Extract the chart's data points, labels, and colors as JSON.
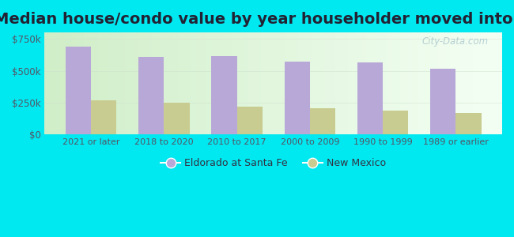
{
  "title": "Median house/condo value by year householder moved into unit",
  "categories": [
    "2021 or later",
    "2018 to 2020",
    "2010 to 2017",
    "2000 to 2009",
    "1990 to 1999",
    "1989 or earlier"
  ],
  "eldorado_values": [
    690000,
    610000,
    615000,
    570000,
    565000,
    515000
  ],
  "newmexico_values": [
    265000,
    248000,
    218000,
    205000,
    185000,
    170000
  ],
  "eldorado_color": "#b8a8d8",
  "newmexico_color": "#c8cc90",
  "background_outer": "#00e8f0",
  "background_inner_left": "#d8f0d0",
  "background_inner_right": "#f0fff0",
  "ylim": [
    0,
    800000
  ],
  "yticks": [
    0,
    250000,
    500000,
    750000
  ],
  "ytick_labels": [
    "$0",
    "$250k",
    "$500k",
    "$750k"
  ],
  "legend_eldorado": "Eldorado at Santa Fe",
  "legend_newmexico": "New Mexico",
  "bar_width": 0.35,
  "title_fontsize": 14,
  "watermark": "City-Data.com"
}
